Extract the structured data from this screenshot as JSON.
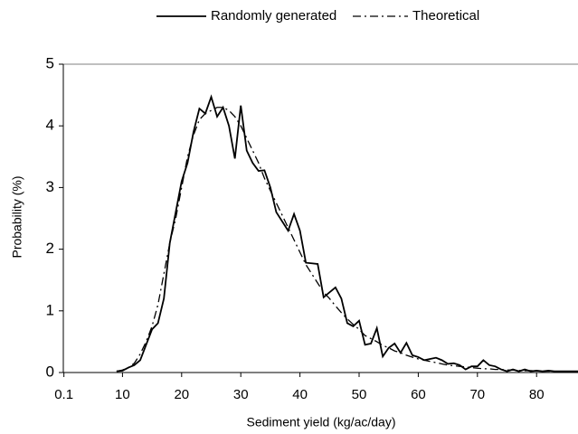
{
  "chart_data": {
    "type": "line",
    "x_label": "Sediment yield (kg/ac/day)",
    "y_label": "Probability (%)",
    "x": [
      9,
      10,
      11,
      12,
      13,
      14,
      15,
      16,
      17,
      18,
      19,
      20,
      21,
      22,
      23,
      24,
      25,
      26,
      27,
      28,
      29,
      30,
      31,
      32,
      33,
      34,
      35,
      36,
      37,
      38,
      39,
      40,
      41,
      42,
      43,
      44,
      45,
      46,
      47,
      48,
      49,
      50,
      51,
      52,
      53,
      54,
      55,
      56,
      57,
      58,
      59,
      60,
      61,
      62,
      63,
      64,
      65,
      66,
      67,
      68,
      69,
      70,
      71,
      72,
      73,
      74,
      75,
      76,
      77,
      78,
      79,
      80,
      81,
      82,
      83,
      84,
      85,
      86,
      87
    ],
    "series": [
      {
        "name": "Randomly generated",
        "color": "#000000",
        "line_style": "solid",
        "values": [
          0.02,
          0.03,
          0.08,
          0.12,
          0.2,
          0.45,
          0.7,
          0.8,
          1.2,
          2.1,
          2.6,
          3.1,
          3.4,
          3.9,
          4.28,
          4.2,
          4.47,
          4.15,
          4.3,
          4.0,
          3.47,
          4.33,
          3.6,
          3.4,
          3.27,
          3.28,
          3.0,
          2.6,
          2.45,
          2.3,
          2.57,
          2.3,
          1.78,
          1.77,
          1.76,
          1.22,
          1.3,
          1.38,
          1.2,
          0.8,
          0.75,
          0.84,
          0.45,
          0.47,
          0.72,
          0.26,
          0.4,
          0.47,
          0.32,
          0.48,
          0.28,
          0.25,
          0.2,
          0.22,
          0.24,
          0.2,
          0.14,
          0.15,
          0.12,
          0.05,
          0.1,
          0.1,
          0.2,
          0.12,
          0.1,
          0.05,
          0.02,
          0.05,
          0.02,
          0.05,
          0.02,
          0.03,
          0.02,
          0.03,
          0.02,
          0.02,
          0.02,
          0.02,
          0.02
        ]
      },
      {
        "name": "Theoretical",
        "color": "#000000",
        "line_style": "dashdot",
        "values": [
          0.02,
          0.04,
          0.08,
          0.15,
          0.3,
          0.5,
          0.75,
          1.1,
          1.6,
          2.1,
          2.5,
          3.0,
          3.5,
          3.85,
          4.1,
          4.2,
          4.25,
          4.3,
          4.3,
          4.25,
          4.15,
          4.0,
          3.8,
          3.6,
          3.4,
          3.15,
          2.95,
          2.75,
          2.55,
          2.35,
          2.15,
          1.95,
          1.75,
          1.6,
          1.45,
          1.3,
          1.2,
          1.08,
          0.97,
          0.87,
          0.78,
          0.7,
          0.6,
          0.55,
          0.5,
          0.44,
          0.4,
          0.35,
          0.32,
          0.28,
          0.25,
          0.22,
          0.2,
          0.18,
          0.16,
          0.14,
          0.12,
          0.11,
          0.1,
          0.09,
          0.08,
          0.07,
          0.06,
          0.06,
          0.05,
          0.05,
          0.04,
          0.04,
          0.035,
          0.03,
          0.03,
          0.025,
          0.02,
          0.02,
          0.02,
          0.015,
          0.015,
          0.01,
          0.01
        ]
      }
    ],
    "xlim": [
      0,
      87
    ],
    "xticks": [
      0.1,
      10,
      20,
      30,
      40,
      50,
      60,
      70,
      80
    ],
    "ylim": [
      0,
      5
    ],
    "yticks": [
      0,
      1,
      2,
      3,
      4,
      5
    ],
    "grid": false,
    "legend": "top"
  }
}
